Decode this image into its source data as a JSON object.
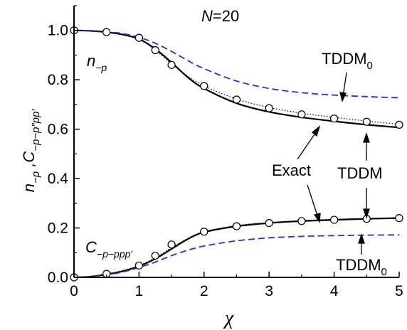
{
  "chart_data": {
    "type": "line",
    "title": "N=20",
    "title_var": "N",
    "title_eq": "=20",
    "xlabel": "χ",
    "ylabel": "n−p , C−p−p″pp′",
    "xlim": [
      0,
      5
    ],
    "ylim": [
      0,
      1.1
    ],
    "xticks": [
      0,
      1,
      2,
      3,
      4,
      5
    ],
    "yticks": [
      0.0,
      0.2,
      0.4,
      0.6,
      0.8,
      1.0
    ],
    "xtick_labels": [
      "0",
      "1",
      "2",
      "3",
      "4",
      "5"
    ],
    "ytick_labels": [
      "0.0",
      "0.2",
      "0.4",
      "0.6",
      "0.8",
      "1.0"
    ],
    "grid": false,
    "series": [
      {
        "group": "n",
        "method": "Exact",
        "style": "solid",
        "color": "#000000",
        "x": [
          0,
          0.25,
          0.5,
          0.75,
          1.0,
          1.25,
          1.5,
          1.75,
          2.0,
          2.5,
          3.0,
          3.5,
          4.0,
          4.5,
          5.0
        ],
        "y": [
          1.0,
          0.998,
          0.993,
          0.983,
          0.965,
          0.925,
          0.87,
          0.81,
          0.765,
          0.705,
          0.67,
          0.648,
          0.632,
          0.618,
          0.607
        ]
      },
      {
        "group": "n",
        "method": "TDDM",
        "style": "dotted",
        "color": "#000000",
        "x": [
          0,
          0.25,
          0.5,
          0.75,
          1.0,
          1.25,
          1.5,
          1.75,
          2.0,
          2.5,
          3.0,
          3.5,
          4.0,
          4.5,
          5.0
        ],
        "y": [
          1.0,
          0.998,
          0.993,
          0.982,
          0.965,
          0.92,
          0.865,
          0.815,
          0.775,
          0.722,
          0.688,
          0.665,
          0.648,
          0.633,
          0.62
        ]
      },
      {
        "group": "n",
        "method": "TDDM0",
        "style": "dashed",
        "color": "#1f35d4",
        "x": [
          0,
          0.25,
          0.5,
          0.75,
          1.0,
          1.25,
          1.5,
          1.75,
          2.0,
          2.5,
          3.0,
          3.5,
          4.0,
          4.5,
          5.0
        ],
        "y": [
          1.0,
          0.999,
          0.995,
          0.987,
          0.972,
          0.948,
          0.915,
          0.878,
          0.845,
          0.795,
          0.765,
          0.748,
          0.738,
          0.732,
          0.727
        ]
      },
      {
        "group": "C",
        "method": "Exact",
        "style": "solid",
        "color": "#000000",
        "x": [
          0,
          0.25,
          0.5,
          0.75,
          1.0,
          1.25,
          1.5,
          1.75,
          2.0,
          2.5,
          3.0,
          3.5,
          4.0,
          4.5,
          5.0
        ],
        "y": [
          0.0,
          0.003,
          0.012,
          0.025,
          0.045,
          0.075,
          0.115,
          0.155,
          0.183,
          0.207,
          0.22,
          0.228,
          0.233,
          0.237,
          0.24
        ]
      },
      {
        "group": "C",
        "method": "TDDM",
        "style": "dotted",
        "color": "#000000",
        "x": [
          0,
          0.25,
          0.5,
          0.75,
          1.0,
          1.25,
          1.5,
          1.75,
          2.0,
          2.5,
          3.0,
          3.5,
          4.0,
          4.5,
          5.0
        ],
        "y": [
          0.0,
          0.004,
          0.014,
          0.028,
          0.048,
          0.08,
          0.12,
          0.158,
          0.185,
          0.21,
          0.222,
          0.23,
          0.235,
          0.238,
          0.241
        ]
      },
      {
        "group": "C",
        "method": "TDDM0",
        "style": "dashed",
        "color": "#1f35d4",
        "x": [
          0,
          0.25,
          0.5,
          0.75,
          1.0,
          1.25,
          1.5,
          1.75,
          2.0,
          2.5,
          3.0,
          3.5,
          4.0,
          4.5,
          5.0
        ],
        "y": [
          0.0,
          0.003,
          0.01,
          0.022,
          0.04,
          0.062,
          0.088,
          0.11,
          0.127,
          0.148,
          0.16,
          0.166,
          0.169,
          0.171,
          0.172
        ]
      },
      {
        "group": "n",
        "method": "TDDM",
        "style": "markers",
        "x": [
          0,
          0.5,
          1.0,
          1.25,
          1.5,
          2.0,
          2.5,
          3.0,
          3.5,
          4.0,
          4.5,
          5.0
        ],
        "y": [
          1.0,
          0.993,
          0.97,
          0.92,
          0.86,
          0.775,
          0.72,
          0.685,
          0.66,
          0.643,
          0.63,
          0.618
        ]
      },
      {
        "group": "C",
        "method": "TDDM",
        "style": "markers",
        "x": [
          0,
          0.5,
          1.0,
          1.25,
          1.5,
          2.0,
          2.5,
          3.0,
          3.5,
          4.0,
          4.5,
          5.0
        ],
        "y": [
          0.0,
          0.014,
          0.048,
          0.088,
          0.133,
          0.185,
          0.207,
          0.22,
          0.228,
          0.233,
          0.237,
          0.24
        ]
      }
    ],
    "annotations": {
      "n_label": "n",
      "n_sub": "−p",
      "c_label": "C",
      "c_sub": "−p−ppp′",
      "tddm0_top_base": "TDDM",
      "tddm0_top_sub": "0",
      "tddm0_bottom_base": "TDDM",
      "tddm0_bottom_sub": "0",
      "exact": "Exact",
      "tddm": "TDDM"
    }
  }
}
